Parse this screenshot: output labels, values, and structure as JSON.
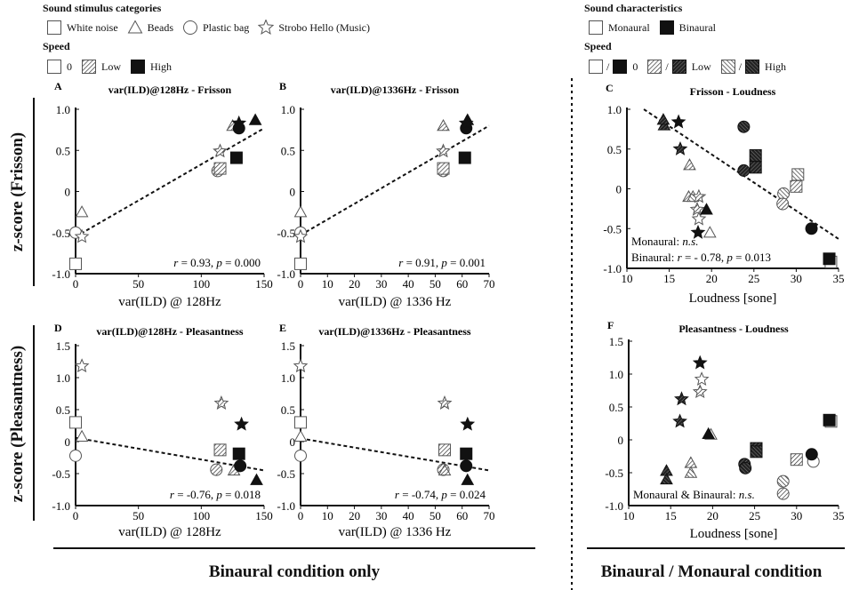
{
  "legend_left": {
    "categories_heading": "Sound stimulus categories",
    "categories": [
      {
        "label": "White noise",
        "icon": "square"
      },
      {
        "label": "Beads",
        "icon": "triangle"
      },
      {
        "label": "Plastic bag",
        "icon": "circle"
      },
      {
        "label": "Strobo Hello (Music)",
        "icon": "star"
      }
    ],
    "speed_heading": "Speed",
    "speeds": [
      {
        "label": "0",
        "fill": "white"
      },
      {
        "label": "Low",
        "fill": "hatch"
      },
      {
        "label": "High",
        "fill": "black"
      }
    ]
  },
  "legend_right": {
    "characteristics_heading": "Sound characteristics",
    "characteristics": [
      {
        "label": "Monaural",
        "fill": "white"
      },
      {
        "label": "Binaural",
        "fill": "black"
      }
    ],
    "speed_heading": "Speed",
    "speeds": [
      {
        "label": "0",
        "fills": [
          "white",
          "black"
        ]
      },
      {
        "label": "Low",
        "fills": [
          "hatch",
          "dhatch"
        ]
      },
      {
        "label": "High",
        "fills": [
          "rhatch",
          "drhatch"
        ]
      }
    ],
    "separator": "/"
  },
  "row_labels": {
    "frisson": "z-score (Frisson)",
    "pleasantness": "z-score (Pleasantness)"
  },
  "column_labels": {
    "left": "Binaural condition only",
    "right": "Binaural / Monaural condition"
  },
  "chart_data": [
    {
      "id": "A",
      "type": "scatter",
      "letter": "A",
      "title": "var(ILD)@128Hz - Frisson",
      "xlabel": "var(ILD) @ 128Hz",
      "xlim": [
        0,
        150
      ],
      "ylim": [
        -1,
        1
      ],
      "xticks": [
        "0",
        "50",
        "100",
        "150"
      ],
      "yticks": [
        "1.0",
        "0.5",
        "0",
        "-0.5",
        "-1.0"
      ],
      "line": [
        [
          0,
          -0.55
        ],
        [
          150,
          0.77
        ]
      ],
      "annotation": [
        [
          [
            "r",
            true
          ],
          [
            " = 0.93, ",
            false
          ],
          [
            "p",
            true
          ],
          [
            " = 0.000",
            false
          ]
        ]
      ],
      "points": [
        {
          "x": 0,
          "y": -0.88,
          "shape": "square",
          "fill": "white"
        },
        {
          "x": 5,
          "y": -0.25,
          "shape": "triangle",
          "fill": "white"
        },
        {
          "x": 0,
          "y": -0.5,
          "shape": "circle",
          "fill": "white"
        },
        {
          "x": 5,
          "y": -0.55,
          "shape": "star",
          "fill": "white"
        },
        {
          "x": 113,
          "y": 0.25,
          "shape": "circle",
          "fill": "hatch"
        },
        {
          "x": 115,
          "y": 0.28,
          "shape": "square",
          "fill": "hatch"
        },
        {
          "x": 115,
          "y": 0.49,
          "shape": "star",
          "fill": "hatch"
        },
        {
          "x": 125,
          "y": 0.8,
          "shape": "triangle",
          "fill": "hatch"
        },
        {
          "x": 128,
          "y": 0.41,
          "shape": "square",
          "fill": "black"
        },
        {
          "x": 130,
          "y": 0.83,
          "shape": "star",
          "fill": "black"
        },
        {
          "x": 130,
          "y": 0.77,
          "shape": "circle",
          "fill": "black"
        },
        {
          "x": 143,
          "y": 0.87,
          "shape": "triangle",
          "fill": "black"
        }
      ]
    },
    {
      "id": "B",
      "type": "scatter",
      "letter": "B",
      "title": "var(ILD)@1336Hz - Frisson",
      "xlabel": "var(ILD) @ 1336 Hz",
      "xlim": [
        0,
        70
      ],
      "ylim": [
        -1,
        1
      ],
      "xticks": [
        "0",
        "10",
        "20",
        "30",
        "40",
        "50",
        "60",
        "70"
      ],
      "yticks": [
        "1.0",
        "0.5",
        "0",
        "-0.5",
        "-1.0"
      ],
      "line": [
        [
          0,
          -0.53
        ],
        [
          70,
          0.8
        ]
      ],
      "annotation": [
        [
          [
            "r",
            true
          ],
          [
            " = 0.91, ",
            false
          ],
          [
            "p",
            true
          ],
          [
            " = 0.001",
            false
          ]
        ]
      ],
      "points": [
        {
          "x": 0,
          "y": -0.88,
          "shape": "square",
          "fill": "white"
        },
        {
          "x": 0,
          "y": -0.25,
          "shape": "triangle",
          "fill": "white"
        },
        {
          "x": 0,
          "y": -0.5,
          "shape": "circle",
          "fill": "white"
        },
        {
          "x": 0,
          "y": -0.55,
          "shape": "star",
          "fill": "white"
        },
        {
          "x": 53,
          "y": 0.25,
          "shape": "circle",
          "fill": "hatch"
        },
        {
          "x": 53,
          "y": 0.28,
          "shape": "square",
          "fill": "hatch"
        },
        {
          "x": 53,
          "y": 0.49,
          "shape": "star",
          "fill": "hatch"
        },
        {
          "x": 53,
          "y": 0.8,
          "shape": "triangle",
          "fill": "hatch"
        },
        {
          "x": 61,
          "y": 0.41,
          "shape": "square",
          "fill": "black"
        },
        {
          "x": 61.5,
          "y": 0.77,
          "shape": "circle",
          "fill": "black"
        },
        {
          "x": 62,
          "y": 0.87,
          "shape": "triangle",
          "fill": "black"
        },
        {
          "x": 61.5,
          "y": 0.83,
          "shape": "star",
          "fill": "black"
        }
      ]
    },
    {
      "id": "C",
      "type": "scatter",
      "letter": "C",
      "title": "Frisson - Loudness",
      "xlabel": "Loudness [sone]",
      "xlim": [
        10,
        35
      ],
      "ylim": [
        -1,
        1
      ],
      "xticks": [
        "10",
        "15",
        "20",
        "25",
        "30",
        "35"
      ],
      "yticks": [
        "1.0",
        "0.5",
        "0",
        "-0.5",
        "-1.0"
      ],
      "line": [
        [
          12,
          1.0
        ],
        [
          35,
          -0.63
        ]
      ],
      "annotation": [
        [
          [
            "Monaural: ",
            false
          ],
          [
            "n.s.",
            true
          ]
        ],
        [
          [
            "Binaural: ",
            false
          ],
          [
            "r",
            true
          ],
          [
            " = - 0.78, ",
            false
          ],
          [
            "p",
            true
          ],
          [
            " = 0.013",
            false
          ]
        ]
      ],
      "points": [
        {
          "x": 14.4,
          "y": 0.8,
          "shape": "triangle",
          "fill": "dhatch"
        },
        {
          "x": 14.3,
          "y": 0.87,
          "shape": "triangle",
          "fill": "dhatch"
        },
        {
          "x": 16.1,
          "y": 0.84,
          "shape": "star",
          "fill": "black"
        },
        {
          "x": 16.3,
          "y": 0.5,
          "shape": "star",
          "fill": "dhatch"
        },
        {
          "x": 17.4,
          "y": 0.3,
          "shape": "triangle",
          "fill": "hatch"
        },
        {
          "x": 17.3,
          "y": -0.1,
          "shape": "triangle",
          "fill": "hatch"
        },
        {
          "x": 17.8,
          "y": -0.1,
          "shape": "triangle",
          "fill": "rhatch"
        },
        {
          "x": 18.5,
          "y": -0.1,
          "shape": "star",
          "fill": "hatch"
        },
        {
          "x": 18.3,
          "y": -0.26,
          "shape": "star",
          "fill": "hatch"
        },
        {
          "x": 19.4,
          "y": -0.26,
          "shape": "triangle",
          "fill": "black"
        },
        {
          "x": 18.5,
          "y": -0.38,
          "shape": "star",
          "fill": "white"
        },
        {
          "x": 18.4,
          "y": -0.55,
          "shape": "star",
          "fill": "black"
        },
        {
          "x": 19.8,
          "y": -0.55,
          "shape": "triangle",
          "fill": "white"
        },
        {
          "x": 23.8,
          "y": 0.78,
          "shape": "circle",
          "fill": "drhatch"
        },
        {
          "x": 25.2,
          "y": 0.42,
          "shape": "square",
          "fill": "drhatch"
        },
        {
          "x": 25.2,
          "y": 0.27,
          "shape": "square",
          "fill": "dhatch"
        },
        {
          "x": 23.8,
          "y": 0.23,
          "shape": "circle",
          "fill": "dhatch"
        },
        {
          "x": 30.2,
          "y": 0.18,
          "shape": "square",
          "fill": "rhatch"
        },
        {
          "x": 30.0,
          "y": 0.03,
          "shape": "square",
          "fill": "hatch"
        },
        {
          "x": 28.5,
          "y": -0.06,
          "shape": "circle",
          "fill": "rhatch"
        },
        {
          "x": 28.4,
          "y": -0.19,
          "shape": "circle",
          "fill": "hatch"
        },
        {
          "x": 31.8,
          "y": -0.5,
          "shape": "circle",
          "fill": "black"
        },
        {
          "x": 34.1,
          "y": -0.92,
          "shape": "square",
          "fill": "white"
        },
        {
          "x": 33.9,
          "y": -0.88,
          "shape": "square",
          "fill": "black"
        }
      ]
    },
    {
      "id": "D",
      "type": "scatter",
      "letter": "D",
      "title": "var(ILD)@128Hz - Pleasantness",
      "xlabel": "var(ILD) @ 128Hz",
      "xlim": [
        0,
        150
      ],
      "ylim": [
        -1,
        1.5
      ],
      "xticks": [
        "0",
        "50",
        "100",
        "150"
      ],
      "yticks": [
        "1.5",
        "1.0",
        "0.5",
        "0",
        "-0.5",
        "-1.0"
      ],
      "line": [
        [
          0,
          0.06
        ],
        [
          150,
          -0.45
        ]
      ],
      "annotation": [
        [
          [
            "r",
            true
          ],
          [
            " = -0.76, ",
            false
          ],
          [
            "p",
            true
          ],
          [
            " = 0.018",
            false
          ]
        ]
      ],
      "points": [
        {
          "x": 5,
          "y": 1.18,
          "shape": "star",
          "fill": "white"
        },
        {
          "x": 0,
          "y": 0.3,
          "shape": "square",
          "fill": "white"
        },
        {
          "x": 5,
          "y": 0.08,
          "shape": "triangle",
          "fill": "white"
        },
        {
          "x": 0,
          "y": -0.22,
          "shape": "circle",
          "fill": "white"
        },
        {
          "x": 116,
          "y": 0.6,
          "shape": "star",
          "fill": "hatch"
        },
        {
          "x": 115,
          "y": -0.13,
          "shape": "square",
          "fill": "hatch"
        },
        {
          "x": 112,
          "y": -0.44,
          "shape": "circle",
          "fill": "hatch"
        },
        {
          "x": 126,
          "y": -0.45,
          "shape": "triangle",
          "fill": "hatch"
        },
        {
          "x": 132,
          "y": 0.27,
          "shape": "star",
          "fill": "black"
        },
        {
          "x": 130,
          "y": -0.19,
          "shape": "square",
          "fill": "black"
        },
        {
          "x": 131,
          "y": -0.38,
          "shape": "circle",
          "fill": "black"
        },
        {
          "x": 144,
          "y": -0.6,
          "shape": "triangle",
          "fill": "black"
        }
      ]
    },
    {
      "id": "E",
      "type": "scatter",
      "letter": "E",
      "title": "var(ILD)@1336Hz - Pleasantness",
      "xlabel": "var(ILD) @ 1336 Hz",
      "xlim": [
        0,
        70
      ],
      "ylim": [
        -1,
        1.5
      ],
      "xticks": [
        "0",
        "10",
        "20",
        "30",
        "40",
        "50",
        "60",
        "70"
      ],
      "yticks": [
        "1.5",
        "1.0",
        "0.5",
        "0",
        "-0.5",
        "-1.0"
      ],
      "line": [
        [
          0,
          0.05
        ],
        [
          70,
          -0.45
        ]
      ],
      "annotation": [
        [
          [
            "r",
            true
          ],
          [
            " = -0.74, ",
            false
          ],
          [
            "p",
            true
          ],
          [
            " = 0.024",
            false
          ]
        ]
      ],
      "points": [
        {
          "x": 0,
          "y": 1.18,
          "shape": "star",
          "fill": "white"
        },
        {
          "x": 0,
          "y": 0.3,
          "shape": "square",
          "fill": "white"
        },
        {
          "x": 0,
          "y": 0.08,
          "shape": "triangle",
          "fill": "white"
        },
        {
          "x": 0,
          "y": -0.22,
          "shape": "circle",
          "fill": "white"
        },
        {
          "x": 53.5,
          "y": 0.6,
          "shape": "star",
          "fill": "hatch"
        },
        {
          "x": 53.5,
          "y": -0.13,
          "shape": "square",
          "fill": "hatch"
        },
        {
          "x": 53,
          "y": -0.44,
          "shape": "circle",
          "fill": "hatch"
        },
        {
          "x": 53.5,
          "y": -0.45,
          "shape": "triangle",
          "fill": "hatch"
        },
        {
          "x": 62,
          "y": 0.27,
          "shape": "star",
          "fill": "black"
        },
        {
          "x": 61.5,
          "y": -0.19,
          "shape": "square",
          "fill": "black"
        },
        {
          "x": 61.5,
          "y": -0.38,
          "shape": "circle",
          "fill": "black"
        },
        {
          "x": 62,
          "y": -0.6,
          "shape": "triangle",
          "fill": "black"
        }
      ]
    },
    {
      "id": "F",
      "type": "scatter",
      "letter": "F",
      "title": "Pleasantness - Loudness",
      "xlabel": "Loudness [sone]",
      "xlim": [
        10,
        35
      ],
      "ylim": [
        -1,
        1.5
      ],
      "xticks": [
        "10",
        "15",
        "20",
        "25",
        "30",
        "35"
      ],
      "yticks": [
        "1.5",
        "1.0",
        "0.5",
        "0",
        "-0.5",
        "-1.0"
      ],
      "line": null,
      "annotation": [
        [
          [
            "Monaural & Binaural: ",
            false
          ],
          [
            "n.s.",
            true
          ]
        ]
      ],
      "points": [
        {
          "x": 18.5,
          "y": 1.17,
          "shape": "star",
          "fill": "black"
        },
        {
          "x": 18.7,
          "y": 0.92,
          "shape": "star",
          "fill": "white"
        },
        {
          "x": 18.5,
          "y": 0.73,
          "shape": "star",
          "fill": "hatch"
        },
        {
          "x": 16.3,
          "y": 0.62,
          "shape": "star",
          "fill": "dhatch"
        },
        {
          "x": 16.1,
          "y": 0.28,
          "shape": "star",
          "fill": "dhatch"
        },
        {
          "x": 19.8,
          "y": 0.08,
          "shape": "triangle",
          "fill": "white"
        },
        {
          "x": 19.5,
          "y": 0.09,
          "shape": "triangle",
          "fill": "black"
        },
        {
          "x": 17.4,
          "y": -0.35,
          "shape": "triangle",
          "fill": "hatch"
        },
        {
          "x": 17.4,
          "y": -0.5,
          "shape": "triangle",
          "fill": "rhatch"
        },
        {
          "x": 14.5,
          "y": -0.47,
          "shape": "triangle",
          "fill": "dhatch"
        },
        {
          "x": 14.5,
          "y": -0.6,
          "shape": "triangle",
          "fill": "drhatch"
        },
        {
          "x": 23.8,
          "y": -0.37,
          "shape": "circle",
          "fill": "dhatch"
        },
        {
          "x": 23.9,
          "y": -0.43,
          "shape": "circle",
          "fill": "drhatch"
        },
        {
          "x": 25.2,
          "y": -0.13,
          "shape": "square",
          "fill": "dhatch"
        },
        {
          "x": 25.2,
          "y": -0.18,
          "shape": "square",
          "fill": "drhatch"
        },
        {
          "x": 30.0,
          "y": -0.3,
          "shape": "square",
          "fill": "hatch"
        },
        {
          "x": 32.0,
          "y": -0.33,
          "shape": "circle",
          "fill": "white"
        },
        {
          "x": 31.8,
          "y": -0.22,
          "shape": "circle",
          "fill": "black"
        },
        {
          "x": 28.4,
          "y": -0.63,
          "shape": "circle",
          "fill": "rhatch"
        },
        {
          "x": 28.4,
          "y": -0.82,
          "shape": "circle",
          "fill": "hatch"
        },
        {
          "x": 34.1,
          "y": 0.28,
          "shape": "square",
          "fill": "white"
        },
        {
          "x": 33.9,
          "y": 0.3,
          "shape": "square",
          "fill": "black"
        }
      ]
    }
  ]
}
